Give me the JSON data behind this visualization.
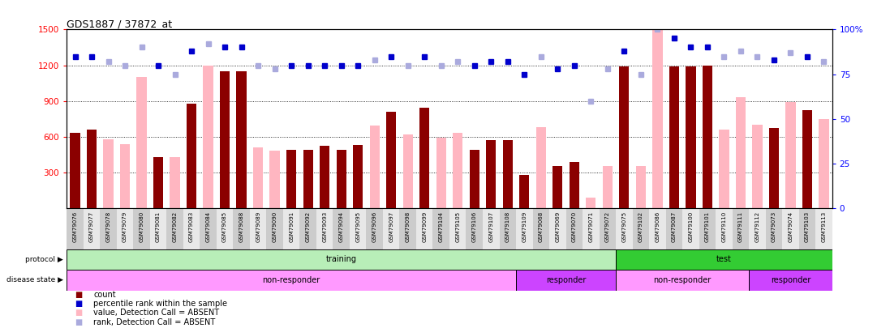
{
  "title": "GDS1887 / 37872_at",
  "samples": [
    "GSM79076",
    "GSM79077",
    "GSM79078",
    "GSM79079",
    "GSM79080",
    "GSM79081",
    "GSM79082",
    "GSM79083",
    "GSM79084",
    "GSM79085",
    "GSM79088",
    "GSM79089",
    "GSM79090",
    "GSM79091",
    "GSM79092",
    "GSM79093",
    "GSM79094",
    "GSM79095",
    "GSM79096",
    "GSM79097",
    "GSM79098",
    "GSM79099",
    "GSM79104",
    "GSM79105",
    "GSM79106",
    "GSM79107",
    "GSM79108",
    "GSM79109",
    "GSM79068",
    "GSM79069",
    "GSM79070",
    "GSM79071",
    "GSM79072",
    "GSM79075",
    "GSM79102",
    "GSM79086",
    "GSM79087",
    "GSM79100",
    "GSM79101",
    "GSM79110",
    "GSM79111",
    "GSM79112",
    "GSM79073",
    "GSM79074",
    "GSM79103",
    "GSM79113"
  ],
  "count_values": [
    630,
    660,
    0,
    0,
    0,
    430,
    0,
    880,
    0,
    1150,
    1150,
    0,
    0,
    490,
    490,
    520,
    490,
    530,
    0,
    810,
    0,
    840,
    0,
    0,
    490,
    570,
    570,
    280,
    0,
    350,
    390,
    0,
    0,
    1190,
    0,
    0,
    1190,
    1190,
    1200,
    0,
    0,
    0,
    670,
    0,
    820,
    0
  ],
  "pink_values": [
    0,
    0,
    580,
    540,
    1100,
    0,
    430,
    0,
    1200,
    0,
    0,
    510,
    480,
    0,
    0,
    0,
    0,
    0,
    690,
    0,
    620,
    0,
    590,
    630,
    0,
    0,
    0,
    0,
    680,
    0,
    0,
    90,
    350,
    0,
    350,
    1500,
    0,
    0,
    0,
    660,
    930,
    700,
    0,
    890,
    0,
    750
  ],
  "blue_values": [
    85,
    85,
    0,
    0,
    0,
    80,
    0,
    88,
    0,
    90,
    90,
    0,
    0,
    80,
    80,
    80,
    80,
    80,
    0,
    85,
    0,
    85,
    0,
    0,
    80,
    82,
    82,
    75,
    0,
    78,
    80,
    0,
    0,
    88,
    0,
    0,
    95,
    90,
    90,
    0,
    0,
    0,
    83,
    0,
    85,
    0
  ],
  "lavender_values": [
    0,
    0,
    82,
    80,
    90,
    0,
    75,
    0,
    92,
    0,
    0,
    80,
    78,
    0,
    0,
    0,
    0,
    0,
    83,
    0,
    80,
    0,
    80,
    82,
    0,
    0,
    0,
    0,
    85,
    0,
    0,
    60,
    78,
    0,
    75,
    100,
    0,
    0,
    0,
    85,
    88,
    85,
    0,
    87,
    0,
    82
  ],
  "protocol_groups": [
    {
      "label": "training",
      "start": 0,
      "end": 33,
      "color": "#B8EEB8"
    },
    {
      "label": "test",
      "start": 33,
      "end": 46,
      "color": "#33CC33"
    }
  ],
  "disease_groups": [
    {
      "label": "non-responder",
      "start": 0,
      "end": 27,
      "color": "#FF99FF"
    },
    {
      "label": "responder",
      "start": 27,
      "end": 33,
      "color": "#CC66FF"
    },
    {
      "label": "non-responder",
      "start": 33,
      "end": 41,
      "color": "#FF99FF"
    },
    {
      "label": "responder",
      "start": 41,
      "end": 46,
      "color": "#CC66FF"
    }
  ],
  "ylim": [
    0,
    1500
  ],
  "yticks_left": [
    300,
    600,
    900,
    1200,
    1500
  ],
  "yticks_right": [
    0,
    25,
    50,
    75,
    100
  ],
  "bar_color": "#8B0000",
  "pink_color": "#FFB6C1",
  "blue_color": "#0000CC",
  "lavender_color": "#AAAADD",
  "bg_color": "#FFFFFF",
  "xlabel_bg": "#D8D8D8"
}
